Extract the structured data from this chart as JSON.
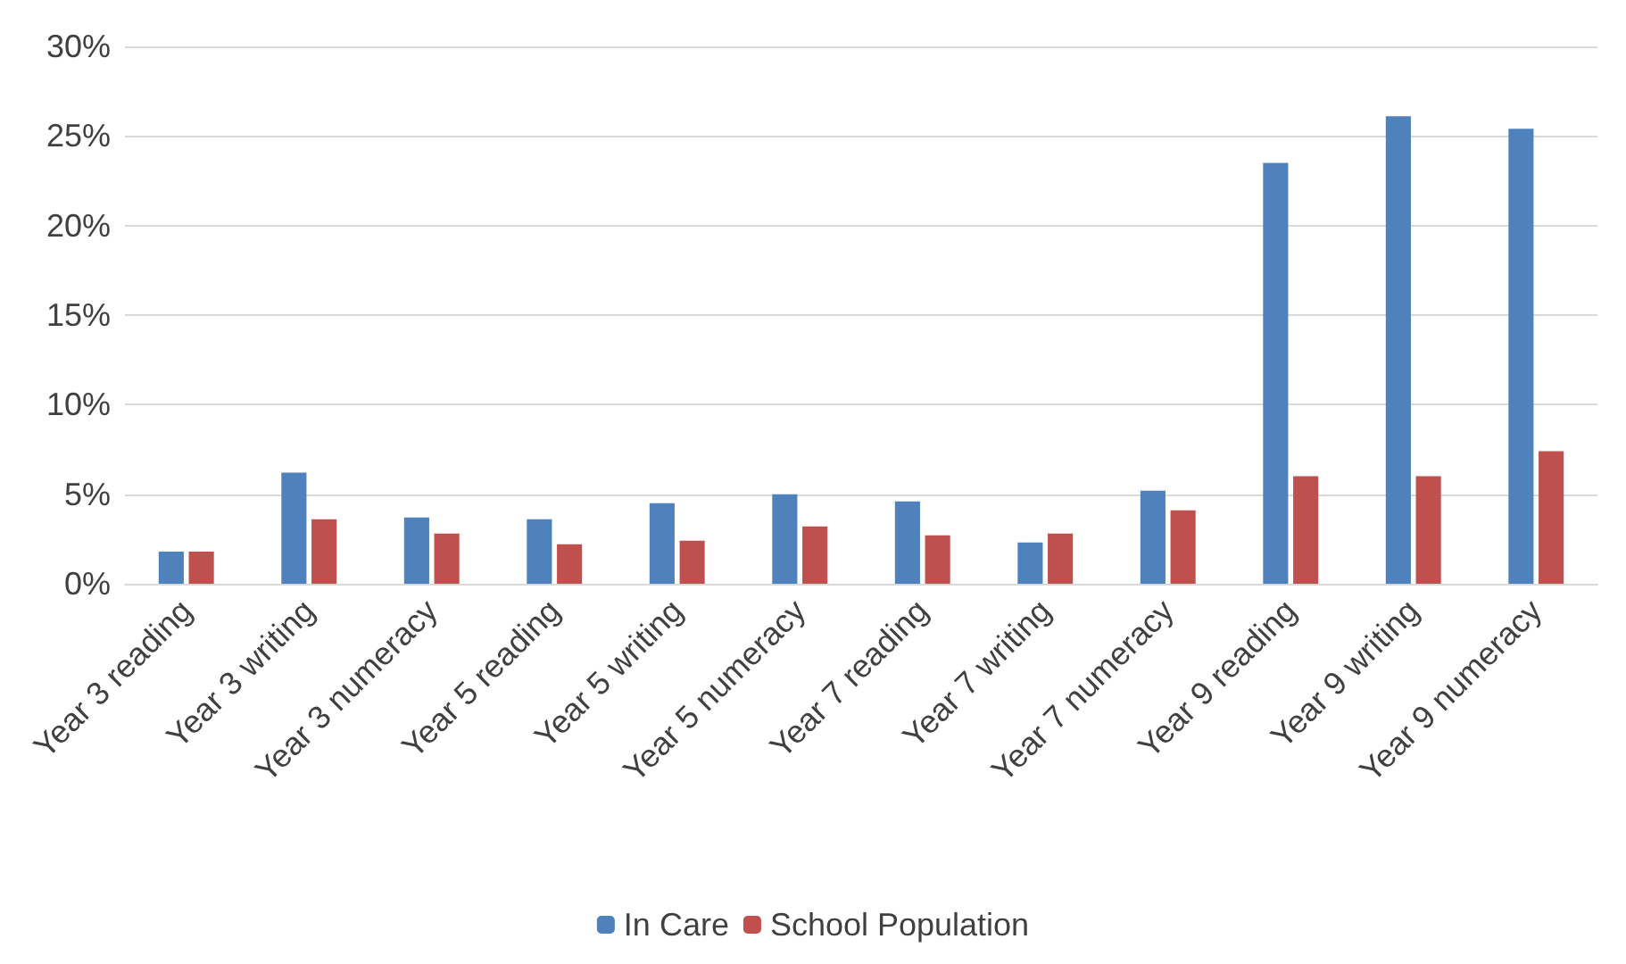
{
  "chart_data": {
    "type": "bar",
    "categories": [
      "Year 3 reading",
      "Year 3 writing",
      "Year 3 numeracy",
      "Year 5 reading",
      "Year 5 writing",
      "Year 5 numeracy",
      "Year 7 reading",
      "Year 7 writing",
      "Year 7 numeracy",
      "Year 9 reading",
      "Year 9 writing",
      "Year 9 numeracy"
    ],
    "series": [
      {
        "name": "In Care",
        "color": "#4f81bd",
        "values": [
          1.8,
          6.2,
          3.7,
          3.6,
          4.5,
          5.0,
          4.6,
          2.3,
          5.2,
          23.5,
          26.1,
          25.4
        ]
      },
      {
        "name": "School Population",
        "color": "#c0504d",
        "values": [
          1.8,
          3.6,
          2.8,
          2.2,
          2.4,
          3.2,
          2.7,
          2.8,
          4.1,
          6.0,
          6.0,
          7.4
        ]
      }
    ],
    "ylim": [
      0,
      30
    ],
    "yticks": [
      {
        "value": 0,
        "label": "0%"
      },
      {
        "value": 5,
        "label": "5%"
      },
      {
        "value": 10,
        "label": "10%"
      },
      {
        "value": 15,
        "label": "15%"
      },
      {
        "value": 20,
        "label": "20%"
      },
      {
        "value": 25,
        "label": "25%"
      },
      {
        "value": 30,
        "label": "30%"
      }
    ],
    "grid": "y",
    "legend": "bottom"
  }
}
